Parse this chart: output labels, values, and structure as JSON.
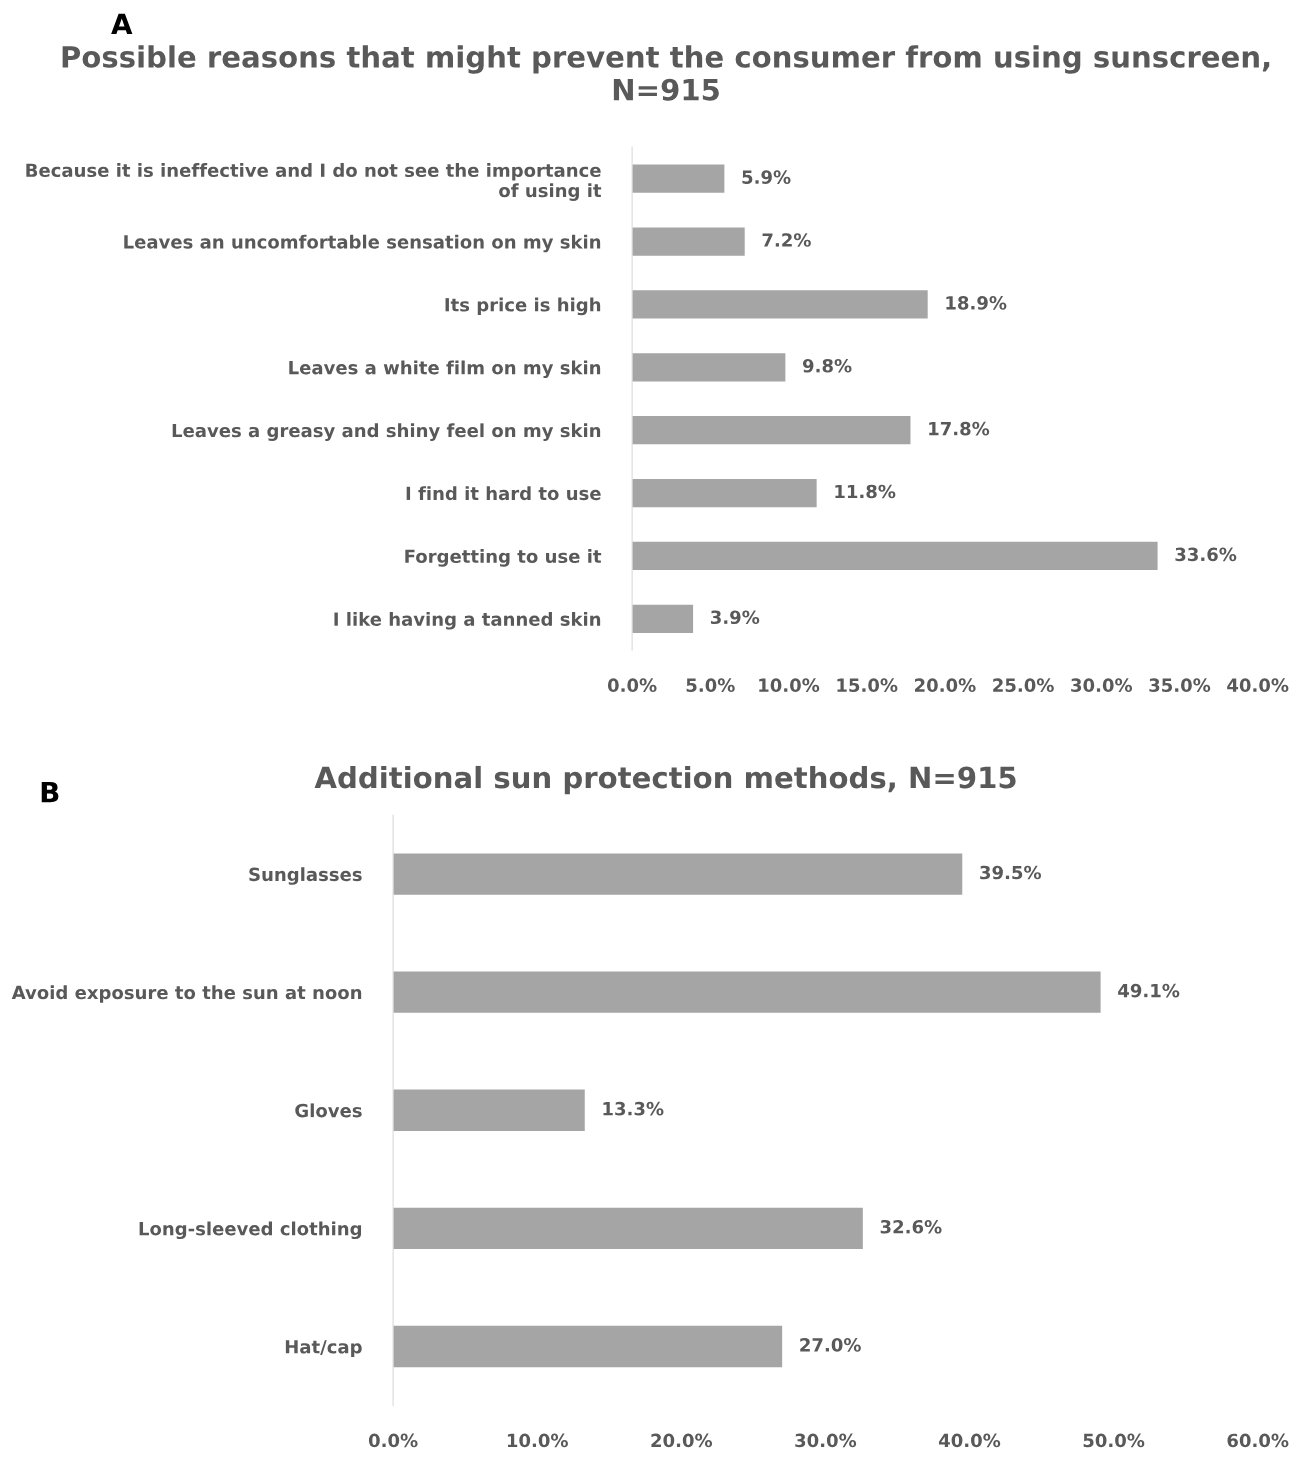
{
  "chart_data": [
    {
      "type": "bar",
      "orientation": "horizontal",
      "title": "Possible reasons that might prevent the consumer from using sunscreen, N=915",
      "annotations": [
        "A"
      ],
      "categories": [
        "Because it is ineffective and I do not see the importance of using it",
        "Leaves an uncomfortable sensation on my skin",
        "Its price is high",
        "Leaves a white film on my skin",
        "Leaves a greasy and shiny feel on my skin",
        "I find it hard to use",
        "Forgetting to use it",
        "I like having a tanned skin"
      ],
      "values": [
        5.9,
        7.2,
        18.9,
        9.8,
        17.8,
        11.8,
        33.6,
        3.9
      ],
      "value_labels": [
        "5.9%",
        "7.2%",
        "18.9%",
        "9.8%",
        "17.8%",
        "11.8%",
        "33.6%",
        "3.9%"
      ],
      "color": "#a5a5a5",
      "xlim": [
        0,
        40
      ],
      "xticks": [
        {
          "value": 0,
          "label": "0.0%"
        },
        {
          "value": 5,
          "label": "5.0%"
        },
        {
          "value": 10,
          "label": "10.0%"
        },
        {
          "value": 15,
          "label": "15.0%"
        },
        {
          "value": 20,
          "label": "20.0%"
        },
        {
          "value": 25,
          "label": "25.0%"
        },
        {
          "value": 30,
          "label": "30.0%"
        },
        {
          "value": 35,
          "label": "35.0%"
        },
        {
          "value": 40,
          "label": "40.0%"
        }
      ],
      "grid": false,
      "legend": false
    },
    {
      "type": "bar",
      "orientation": "horizontal",
      "title": "Additional sun protection methods, N=915",
      "annotations": [
        "B"
      ],
      "categories": [
        "Sunglasses",
        "Avoid exposure to the sun at noon",
        "Gloves",
        "Long-sleeved clothing",
        "Hat/cap"
      ],
      "values": [
        39.5,
        49.1,
        13.3,
        32.6,
        27.0
      ],
      "value_labels": [
        "39.5%",
        "49.1%",
        "13.3%",
        "32.6%",
        "27.0%"
      ],
      "color": "#a5a5a5",
      "xlim": [
        0,
        60
      ],
      "xticks": [
        {
          "value": 0,
          "label": "0.0%"
        },
        {
          "value": 10,
          "label": "10.0%"
        },
        {
          "value": 20,
          "label": "20.0%"
        },
        {
          "value": 30,
          "label": "30.0%"
        },
        {
          "value": 40,
          "label": "40.0%"
        },
        {
          "value": 50,
          "label": "50.0%"
        },
        {
          "value": 60,
          "label": "60.0%"
        }
      ],
      "grid": false,
      "legend": false
    }
  ]
}
